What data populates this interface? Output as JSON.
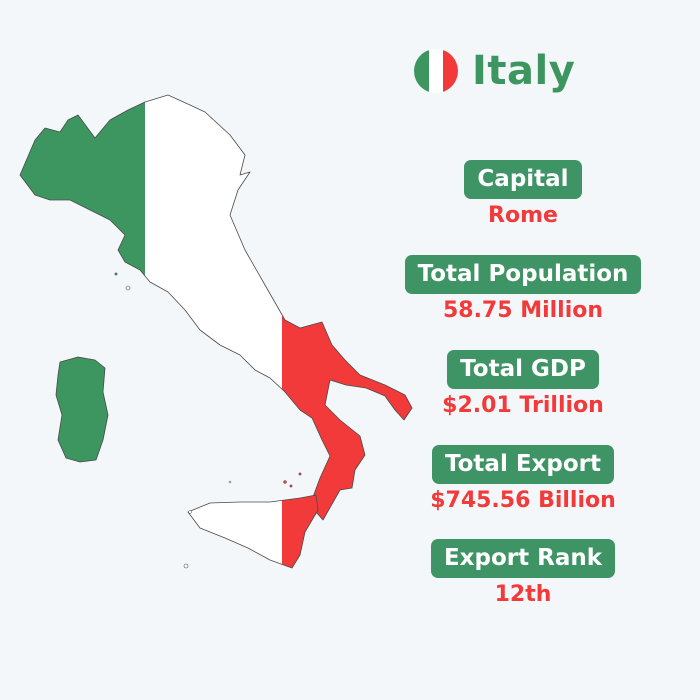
{
  "country": {
    "name": "Italy",
    "flag_icon": "italy-flag-icon",
    "flag_colors": [
      "#009246",
      "#ffffff",
      "#ce2b37"
    ]
  },
  "map": {
    "icon": "italy-map-icon",
    "colors": {
      "green": "#3d9660",
      "white": "#ffffff",
      "red": "#f23a3a",
      "outline": "#4a4a4a"
    }
  },
  "stats": [
    {
      "label": "Capital",
      "value": "Rome"
    },
    {
      "label": "Total Population",
      "value": "58.75 Million"
    },
    {
      "label": "Total GDP",
      "value": "$2.01 Trillion"
    },
    {
      "label": "Total Export",
      "value": "$745.56 Billion"
    },
    {
      "label": "Export Rank",
      "value": "12th"
    }
  ],
  "theme": {
    "background": "#f4f7fa",
    "accent_green": "#3f9466",
    "accent_red": "#f23a3a"
  }
}
